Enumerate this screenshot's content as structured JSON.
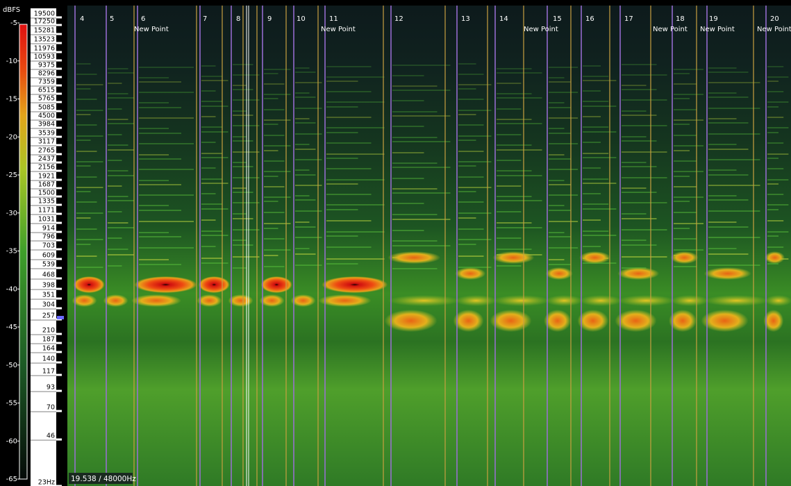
{
  "scale": {
    "unit": "dBFS",
    "db_ticks": [
      "-5",
      "-10",
      "-15",
      "-20",
      "-25",
      "-30",
      "-35",
      "-40",
      "-45",
      "-50",
      "-55",
      "-60",
      "-65"
    ]
  },
  "freq_labels": [
    "19500",
    "17250",
    "15281",
    "13523",
    "11976",
    "10593",
    "9375",
    "8296",
    "7359",
    "6515",
    "5765",
    "5085",
    "4500",
    "3984",
    "3539",
    "3117",
    "2765",
    "2437",
    "2156",
    "1921",
    "1687",
    "1500",
    "1335",
    "1171",
    "1031",
    "914",
    "796",
    "703",
    "609",
    "539",
    "468",
    "398",
    "351",
    "304",
    "257",
    "210",
    "187",
    "164",
    "140",
    "117",
    "93",
    "70",
    "46",
    "23Hz"
  ],
  "markers": [
    {
      "number": "4"
    },
    {
      "number": "5"
    },
    {
      "number": "6",
      "label": "New Point"
    },
    {
      "number": "7"
    },
    {
      "number": "8"
    },
    {
      "number": "9"
    },
    {
      "number": "10"
    },
    {
      "number": "11",
      "label": "New Point"
    },
    {
      "number": "12"
    },
    {
      "number": "13"
    },
    {
      "number": "14"
    },
    {
      "number": "15",
      "label": "New Point"
    },
    {
      "number": "16"
    },
    {
      "number": "17"
    },
    {
      "number": "18",
      "label": "New Point"
    },
    {
      "number": "19",
      "label": "New Point"
    },
    {
      "number": "20",
      "label": "New Point"
    }
  ],
  "status": "19.538 / 48000Hz"
}
